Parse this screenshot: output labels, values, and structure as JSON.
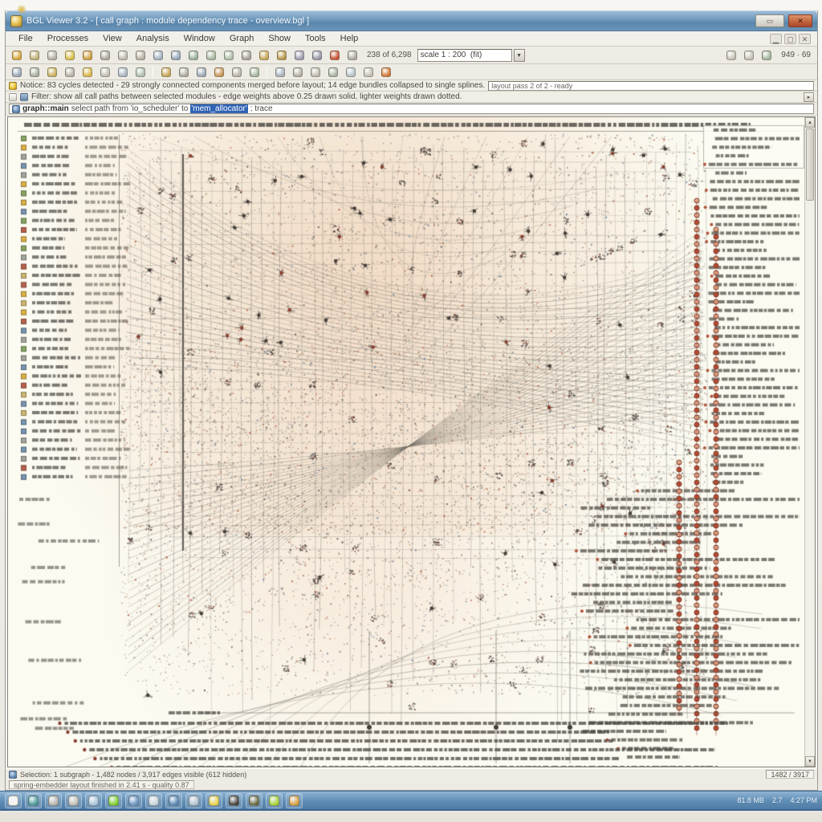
{
  "window": {
    "title": "BGL Viewer 3.2  -  [ call graph : module dependency trace  -  overview.bgl ]",
    "controls": {
      "minimize": "▭",
      "close": "✕"
    }
  },
  "menu": {
    "items": [
      "File",
      "Processes",
      "View",
      "Analysis",
      "Window",
      "Graph",
      "Show",
      "Tools",
      "Help"
    ],
    "mdi_controls": [
      "▁",
      "▢",
      "✕"
    ]
  },
  "toolbar_main": {
    "buttons": [
      {
        "name": "open-graph-icon",
        "color": "#d9a83c"
      },
      {
        "name": "save-graph-icon",
        "color": "#c2b278"
      },
      {
        "name": "export-image-icon",
        "color": "#b6b2a6"
      },
      {
        "name": "print-icon",
        "color": "#d9c04c"
      },
      {
        "name": "snapshot-icon",
        "color": "#d0a040"
      },
      {
        "name": "cut-icon",
        "color": "#aeaa9e"
      },
      {
        "name": "copy-icon",
        "color": "#c0bcb0"
      },
      {
        "name": "paste-icon",
        "color": "#b8b0a0"
      },
      {
        "name": "undo-icon",
        "color": "#a4b2c0"
      },
      {
        "name": "redo-icon",
        "color": "#94a6b8"
      },
      {
        "name": "zoom-in-icon",
        "color": "#9cb09c"
      },
      {
        "name": "zoom-out-icon",
        "color": "#a8b8a0"
      },
      {
        "name": "fit-to-page-icon",
        "color": "#b0c0a8"
      },
      {
        "name": "pan-tool-icon",
        "color": "#a8a498"
      },
      {
        "name": "layout-icon",
        "color": "#c8a858"
      },
      {
        "name": "relayout-icon",
        "color": "#b89848"
      },
      {
        "name": "cluster-icon",
        "color": "#a09cb0"
      },
      {
        "name": "expand-node-icon",
        "color": "#9898a8"
      },
      {
        "name": "stop-layout-icon",
        "color": "#c85434"
      },
      {
        "name": "options-icon",
        "color": "#b0aca4"
      }
    ],
    "scale_label": "238 of 6,298",
    "combo_value": "scale 1 : 200  (fit)",
    "right_buttons": [
      {
        "name": "previous-view-icon",
        "color": "#c6c2b6"
      },
      {
        "name": "next-view-icon",
        "color": "#c6c2b6"
      },
      {
        "name": "refresh-view-icon",
        "color": "#a4b69e"
      }
    ],
    "right_label": "949 · 69"
  },
  "toolbar_secondary": {
    "groups": [
      [
        {
          "name": "select-tool-icon",
          "color": "#9aa8b8"
        },
        {
          "name": "lasso-tool-icon",
          "color": "#a8b0a0"
        },
        {
          "name": "node-info-icon",
          "color": "#c8b060"
        },
        {
          "name": "edge-info-icon",
          "color": "#b8b4a8"
        },
        {
          "name": "find-node-icon",
          "color": "#d9b84c"
        },
        {
          "name": "filter-icon",
          "color": "#c4c0b4"
        },
        {
          "name": "hide-selection-icon",
          "color": "#aab6c2"
        },
        {
          "name": "show-all-icon",
          "color": "#b0c0b0"
        }
      ],
      [
        {
          "name": "group-nodes-icon",
          "color": "#c8a858"
        },
        {
          "name": "ungroup-nodes-icon",
          "color": "#b0aca0"
        },
        {
          "name": "collapse-icon",
          "color": "#9ca8b6"
        },
        {
          "name": "fold-edges-icon",
          "color": "#c89858"
        },
        {
          "name": "unfold-edges-icon",
          "color": "#b8b4a8"
        },
        {
          "name": "path-trace-icon",
          "color": "#a8b8a0"
        }
      ],
      [
        {
          "name": "hierarchy-layout-icon",
          "color": "#a8b4c0"
        },
        {
          "name": "spring-layout-icon",
          "color": "#b6b2a6"
        },
        {
          "name": "circular-layout-icon",
          "color": "#c0bcb0"
        },
        {
          "name": "orthogonal-layout-icon",
          "color": "#aab6a2"
        },
        {
          "name": "tree-layout-icon",
          "color": "#b8c4cc"
        },
        {
          "name": "report-icon",
          "color": "#c4c0b4"
        },
        {
          "name": "alert-icon",
          "color": "#d07838"
        }
      ]
    ]
  },
  "infobar_notice": {
    "text": "Notice: 83 cycles detected - 29 strongly connected components merged before layout; 14 edge bundles collapsed to single splines.",
    "field_text": "layout pass 2 of 2 - ready"
  },
  "infobar_filter": {
    "text": "Filter: show all call paths between selected modules - edge weights above 0.25 drawn solid, lighter weights drawn dotted.",
    "right_button": "▸"
  },
  "infobar_command": {
    "badge": "graph::main",
    "text_before": "select path from 'io_scheduler' to ",
    "selected_text": "'mem_allocator'",
    "text_after": " ; trace"
  },
  "viewport": {
    "scroll_up": "▲",
    "scroll_down": "▼"
  },
  "statusbar": {
    "line1": "Selection: 1 subgraph  -  1,482 nodes / 3,917 edges visible  (612 hidden)",
    "line1_right": "1482 / 3917",
    "line2": "spring-embedder layout finished in 2.41 s  -  quality 0.87"
  },
  "taskbar": {
    "buttons": [
      {
        "name": "start-button",
        "color": "#f6f4ee"
      },
      {
        "name": "network-globe-icon",
        "color": "#4a9a9a"
      },
      {
        "name": "explorer-icon",
        "color": "#b8b4ac"
      },
      {
        "name": "documents-icon",
        "color": "#c2beb6"
      },
      {
        "name": "mail-icon",
        "color": "#a8c4dc"
      },
      {
        "name": "messenger-icon",
        "color": "#7ed02c"
      },
      {
        "name": "browser-icon",
        "color": "#6a94c4"
      },
      {
        "name": "notes-icon",
        "color": "#c8d4dc"
      },
      {
        "name": "media-player-icon",
        "color": "#5888b8"
      },
      {
        "name": "task-list-icon",
        "color": "#b4c4d0"
      },
      {
        "name": "warning-icon",
        "color": "#ecd44c"
      },
      {
        "name": "record-icon",
        "color": "#48423c"
      },
      {
        "name": "shield-icon",
        "color": "#6a6a42"
      },
      {
        "name": "chat-icon",
        "color": "#a8d438"
      },
      {
        "name": "update-icon",
        "color": "#d8a040"
      }
    ],
    "tray": [
      "81.8 MB",
      "2.7",
      "4:27 PM"
    ]
  }
}
